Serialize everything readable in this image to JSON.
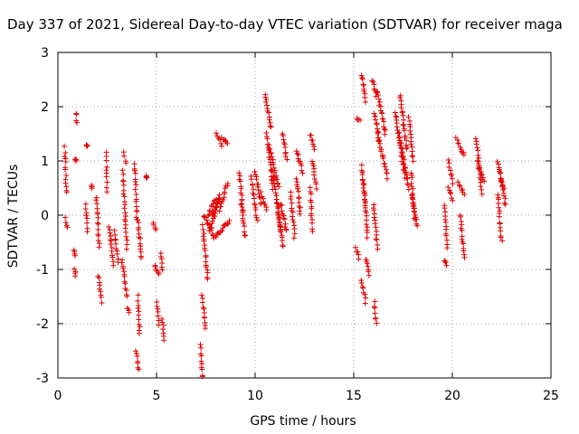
{
  "chart_data": {
    "type": "scatter",
    "title": "Day 337 of 2021, Sidereal Day-to-day VTEC variation (SDTVAR) for receiver maga",
    "xlabel": "GPS time / hours",
    "ylabel": "SDTVAR / TECUs",
    "xlim": [
      0,
      25
    ],
    "ylim": [
      -3,
      3
    ],
    "xticks": [
      0,
      5,
      10,
      15,
      20,
      25
    ],
    "yticks": [
      -3,
      -2,
      -1,
      0,
      1,
      2,
      3
    ],
    "xtick_labels": [
      "0",
      "5",
      "10",
      "15",
      "20",
      "25"
    ],
    "ytick_labels": [
      "-3",
      "-2",
      "-1",
      "0",
      "1",
      "2",
      "3"
    ],
    "grid": true,
    "marker": "+",
    "series_color": "#e00000",
    "segments": [
      [
        0.35,
        0.42,
        1.25,
        0.4
      ],
      [
        0.38,
        0.45,
        -0.05,
        -0.25
      ],
      [
        0.9,
        0.95,
        1.9,
        1.7
      ],
      [
        0.88,
        0.92,
        1.05,
        1.0
      ],
      [
        0.82,
        0.9,
        -0.65,
        -0.75
      ],
      [
        0.85,
        0.9,
        -1.0,
        -1.1
      ],
      [
        1.45,
        1.5,
        1.3,
        1.3
      ],
      [
        1.4,
        1.5,
        0.2,
        -0.3
      ],
      [
        1.7,
        1.75,
        0.55,
        0.5
      ],
      [
        1.95,
        2.1,
        0.35,
        -0.6
      ],
      [
        2.05,
        2.2,
        -1.1,
        -1.6
      ],
      [
        2.45,
        2.5,
        1.15,
        0.45
      ],
      [
        2.6,
        2.8,
        -0.2,
        -0.9
      ],
      [
        2.85,
        3.05,
        -0.3,
        -0.85
      ],
      [
        3.35,
        3.45,
        1.15,
        0.95
      ],
      [
        3.3,
        3.5,
        0.8,
        -0.6
      ],
      [
        3.25,
        3.5,
        -0.8,
        -1.5
      ],
      [
        3.55,
        3.6,
        -1.7,
        -1.8
      ],
      [
        3.9,
        4.0,
        0.95,
        -0.1
      ],
      [
        3.95,
        4.1,
        -2.5,
        -2.85
      ],
      [
        4.05,
        4.15,
        -1.5,
        -2.2
      ],
      [
        4.05,
        4.25,
        -0.1,
        -0.8
      ],
      [
        4.5,
        4.5,
        0.7,
        0.7
      ],
      [
        4.85,
        4.95,
        -0.15,
        -0.25
      ],
      [
        4.9,
        5.1,
        -0.9,
        -1.1
      ],
      [
        5.0,
        5.1,
        -1.6,
        -2.0
      ],
      [
        5.2,
        5.3,
        -0.7,
        -1.0
      ],
      [
        5.3,
        5.4,
        -1.9,
        -2.3
      ],
      [
        7.25,
        7.35,
        -2.4,
        -3.0
      ],
      [
        7.3,
        7.5,
        -1.5,
        -2.1
      ],
      [
        7.35,
        7.6,
        -0.2,
        -1.2
      ],
      [
        7.4,
        7.9,
        0.0,
        -0.4
      ],
      [
        7.6,
        8.0,
        0.0,
        0.3
      ],
      [
        7.7,
        8.2,
        -0.3,
        0.35
      ],
      [
        7.8,
        8.2,
        0.0,
        0.3
      ],
      [
        8.0,
        8.7,
        -0.4,
        -0.1
      ],
      [
        8.2,
        8.6,
        0.1,
        0.6
      ],
      [
        8.05,
        8.3,
        1.5,
        1.3
      ],
      [
        8.3,
        8.6,
        1.45,
        1.3
      ],
      [
        9.2,
        9.4,
        0.8,
        0.0
      ],
      [
        9.3,
        9.5,
        0.2,
        -0.4
      ],
      [
        9.8,
        10.1,
        0.7,
        -0.1
      ],
      [
        10.0,
        10.3,
        0.8,
        0.2
      ],
      [
        10.3,
        10.6,
        0.4,
        0.1
      ],
      [
        10.5,
        10.8,
        2.25,
        1.6
      ],
      [
        10.6,
        10.9,
        1.5,
        0.5
      ],
      [
        10.7,
        11.2,
        1.3,
        0.5
      ],
      [
        10.9,
        11.3,
        0.8,
        -0.3
      ],
      [
        11.1,
        11.4,
        0.3,
        -0.6
      ],
      [
        11.3,
        11.6,
        0.2,
        -0.3
      ],
      [
        11.4,
        11.6,
        1.5,
        1.0
      ],
      [
        11.8,
        12.0,
        0.4,
        -0.4
      ],
      [
        12.1,
        12.4,
        1.2,
        0.8
      ],
      [
        12.1,
        12.3,
        0.7,
        0.0
      ],
      [
        12.8,
        12.9,
        0.5,
        -0.3
      ],
      [
        12.8,
        13.0,
        1.5,
        1.2
      ],
      [
        12.9,
        13.1,
        1.0,
        0.5
      ],
      [
        15.15,
        15.3,
        1.8,
        1.75
      ],
      [
        15.1,
        15.25,
        -0.6,
        -0.8
      ],
      [
        15.4,
        15.6,
        2.6,
        2.1
      ],
      [
        15.4,
        15.6,
        0.9,
        0.2
      ],
      [
        15.5,
        15.7,
        0.6,
        -0.4
      ],
      [
        15.6,
        15.8,
        -0.8,
        -1.1
      ],
      [
        15.4,
        15.6,
        -1.2,
        -1.6
      ],
      [
        16.05,
        16.15,
        -1.6,
        -2.0
      ],
      [
        15.95,
        16.15,
        2.5,
        2.2
      ],
      [
        16.05,
        16.3,
        1.9,
        1.4
      ],
      [
        16.0,
        16.2,
        0.2,
        -0.6
      ],
      [
        16.2,
        16.6,
        2.3,
        1.5
      ],
      [
        16.2,
        16.7,
        1.5,
        0.7
      ],
      [
        17.1,
        17.6,
        1.9,
        0.7
      ],
      [
        17.35,
        17.7,
        2.2,
        1.2
      ],
      [
        17.3,
        17.8,
        1.5,
        0.5
      ],
      [
        17.8,
        18.0,
        1.8,
        1.0
      ],
      [
        17.9,
        18.1,
        0.8,
        -0.1
      ],
      [
        17.95,
        18.2,
        0.4,
        -0.2
      ],
      [
        19.6,
        19.75,
        0.2,
        -0.6
      ],
      [
        19.6,
        19.7,
        -0.85,
        -0.9
      ],
      [
        19.8,
        20.0,
        1.0,
        0.6
      ],
      [
        19.8,
        20.0,
        0.5,
        0.3
      ],
      [
        20.2,
        20.6,
        1.4,
        1.1
      ],
      [
        20.3,
        20.6,
        0.6,
        0.4
      ],
      [
        20.4,
        20.6,
        0.0,
        -0.8
      ],
      [
        21.2,
        21.5,
        1.4,
        0.4
      ],
      [
        21.3,
        21.6,
        1.0,
        0.6
      ],
      [
        22.3,
        22.6,
        1.0,
        0.5
      ],
      [
        22.3,
        22.5,
        0.4,
        -0.5
      ],
      [
        22.4,
        22.7,
        0.8,
        0.2
      ]
    ]
  }
}
